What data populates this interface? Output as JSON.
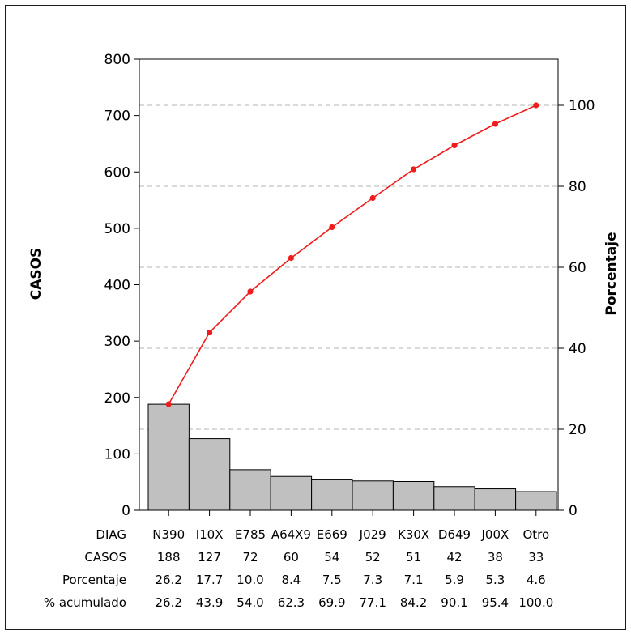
{
  "chart_data": {
    "type": "bar",
    "chart_subtype": "pareto",
    "categories": [
      "N390",
      "I10X",
      "E785",
      "A64X9",
      "E669",
      "J029",
      "K30X",
      "D649",
      "J00X",
      "Otro"
    ],
    "values": [
      188,
      127,
      72,
      60,
      54,
      52,
      51,
      42,
      38,
      33
    ],
    "percent": [
      26.2,
      17.7,
      10.0,
      8.4,
      7.5,
      7.3,
      7.1,
      5.9,
      5.3,
      4.6
    ],
    "cumulative_percent": [
      26.2,
      43.9,
      54.0,
      62.3,
      69.9,
      77.1,
      84.2,
      90.1,
      95.4,
      100.0
    ],
    "ylabel": "CASOS",
    "y2label": "Porcentaje",
    "ylim": [
      0,
      800
    ],
    "y2lim": [
      0,
      111.4
    ],
    "yticks": [
      0,
      100,
      200,
      300,
      400,
      500,
      600,
      700,
      800
    ],
    "y2ticks": [
      0,
      20,
      40,
      60,
      80,
      100
    ],
    "bar_color": "#c0c0c0",
    "line_color": "#ee1c1c",
    "grid": "horizontal dashed at secondary axis ticks",
    "table": {
      "row_labels": [
        "DIAG",
        "CASOS",
        "Porcentaje",
        "% acumulado"
      ],
      "rows": [
        [
          "N390",
          "I10X",
          "E785",
          "A64X9",
          "E669",
          "J029",
          "K30X",
          "D649",
          "J00X",
          "Otro"
        ],
        [
          "188",
          "127",
          "72",
          "60",
          "54",
          "52",
          "51",
          "42",
          "38",
          "33"
        ],
        [
          "26.2",
          "17.7",
          "10.0",
          "8.4",
          "7.5",
          "7.3",
          "7.1",
          "5.9",
          "5.3",
          "4.6"
        ],
        [
          "26.2",
          "43.9",
          "54.0",
          "62.3",
          "69.9",
          "77.1",
          "84.2",
          "90.1",
          "95.4",
          "100.0"
        ]
      ]
    }
  }
}
